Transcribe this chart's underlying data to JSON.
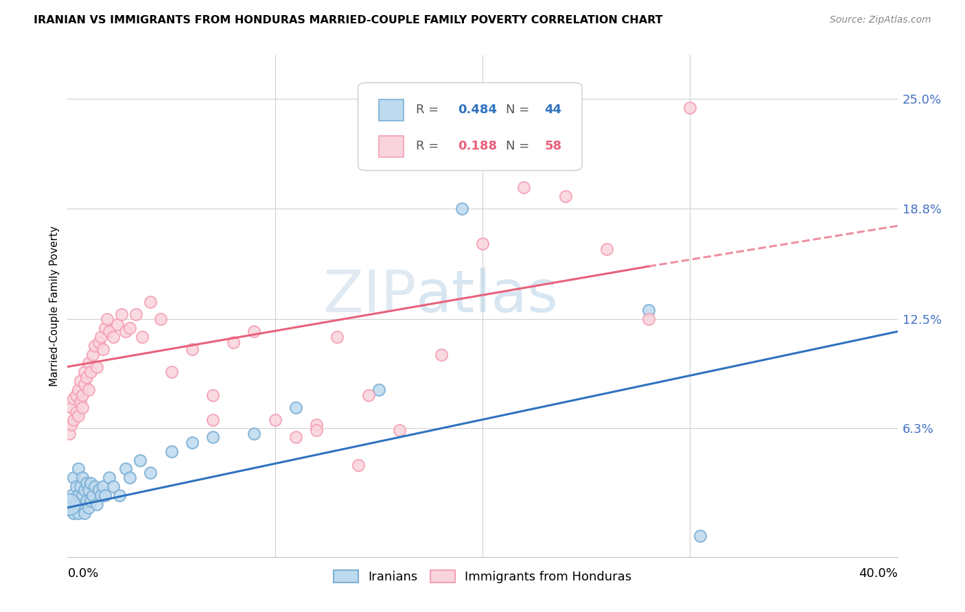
{
  "title": "IRANIAN VS IMMIGRANTS FROM HONDURAS MARRIED-COUPLE FAMILY POVERTY CORRELATION CHART",
  "source": "Source: ZipAtlas.com",
  "ylabel": "Married-Couple Family Poverty",
  "ytick_labels": [
    "25.0%",
    "18.8%",
    "12.5%",
    "6.3%"
  ],
  "ytick_values": [
    0.25,
    0.188,
    0.125,
    0.063
  ],
  "xlim": [
    0.0,
    0.4
  ],
  "ylim": [
    -0.01,
    0.275
  ],
  "watermark_zip": "ZIP",
  "watermark_atlas": "atlas",
  "legend_r1": "R =",
  "legend_v1": "0.484",
  "legend_n1_label": "N =",
  "legend_n1": "44",
  "legend_r2": "R =",
  "legend_v2": "0.188",
  "legend_n2_label": "N =",
  "legend_n2": "58",
  "blue_fill": "#BEDAEF",
  "blue_edge": "#7BAFD4",
  "pink_fill": "#FAD4DC",
  "pink_edge": "#F4A0B5",
  "line_blue": "#2F72BF",
  "line_pink": "#E8607A",
  "iranians_label": "Iranians",
  "honduras_label": "Immigrants from Honduras",
  "iranians_x": [
    0.001,
    0.002,
    0.003,
    0.003,
    0.004,
    0.004,
    0.005,
    0.005,
    0.005,
    0.006,
    0.006,
    0.007,
    0.007,
    0.008,
    0.008,
    0.009,
    0.009,
    0.01,
    0.01,
    0.011,
    0.011,
    0.012,
    0.013,
    0.014,
    0.015,
    0.016,
    0.017,
    0.018,
    0.02,
    0.022,
    0.025,
    0.028,
    0.03,
    0.035,
    0.04,
    0.05,
    0.06,
    0.07,
    0.09,
    0.11,
    0.15,
    0.19,
    0.28,
    0.305
  ],
  "iranians_y": [
    0.02,
    0.025,
    0.015,
    0.035,
    0.02,
    0.03,
    0.015,
    0.025,
    0.04,
    0.02,
    0.03,
    0.025,
    0.035,
    0.015,
    0.028,
    0.022,
    0.032,
    0.018,
    0.028,
    0.022,
    0.032,
    0.025,
    0.03,
    0.02,
    0.028,
    0.025,
    0.03,
    0.025,
    0.035,
    0.03,
    0.025,
    0.04,
    0.035,
    0.045,
    0.038,
    0.05,
    0.055,
    0.058,
    0.06,
    0.075,
    0.085,
    0.188,
    0.13,
    0.002
  ],
  "honduras_x": [
    0.001,
    0.002,
    0.002,
    0.003,
    0.003,
    0.004,
    0.004,
    0.005,
    0.005,
    0.006,
    0.006,
    0.007,
    0.007,
    0.008,
    0.008,
    0.009,
    0.01,
    0.01,
    0.011,
    0.012,
    0.013,
    0.014,
    0.015,
    0.016,
    0.017,
    0.018,
    0.019,
    0.02,
    0.022,
    0.024,
    0.026,
    0.028,
    0.03,
    0.033,
    0.036,
    0.04,
    0.045,
    0.05,
    0.06,
    0.07,
    0.08,
    0.09,
    0.1,
    0.11,
    0.12,
    0.14,
    0.16,
    0.18,
    0.2,
    0.22,
    0.24,
    0.26,
    0.28,
    0.3,
    0.13,
    0.145,
    0.07,
    0.12
  ],
  "honduras_y": [
    0.06,
    0.065,
    0.075,
    0.068,
    0.08,
    0.072,
    0.082,
    0.07,
    0.085,
    0.078,
    0.09,
    0.082,
    0.075,
    0.088,
    0.095,
    0.092,
    0.085,
    0.1,
    0.095,
    0.105,
    0.11,
    0.098,
    0.112,
    0.115,
    0.108,
    0.12,
    0.125,
    0.118,
    0.115,
    0.122,
    0.128,
    0.118,
    0.12,
    0.128,
    0.115,
    0.135,
    0.125,
    0.095,
    0.108,
    0.082,
    0.112,
    0.118,
    0.068,
    0.058,
    0.065,
    0.042,
    0.062,
    0.105,
    0.168,
    0.2,
    0.195,
    0.165,
    0.125,
    0.245,
    0.115,
    0.082,
    0.068,
    0.062
  ],
  "iranians_sizes": [
    300,
    150,
    150,
    150,
    150,
    150,
    150,
    150,
    150,
    150,
    150,
    150,
    150,
    150,
    150,
    150,
    150,
    150,
    150,
    150,
    150,
    150,
    150,
    150,
    150,
    150,
    150,
    150,
    150,
    150,
    150,
    150,
    150,
    150,
    150,
    150,
    150,
    150,
    150,
    150,
    150,
    150,
    150,
    150
  ],
  "line_blue_start_x": 0.0,
  "line_blue_start_y": 0.018,
  "line_blue_end_x": 0.4,
  "line_blue_end_y": 0.118,
  "line_pink_solid_start_x": 0.0,
  "line_pink_solid_start_y": 0.098,
  "line_pink_solid_end_x": 0.28,
  "line_pink_solid_end_y": 0.155,
  "line_pink_dash_start_x": 0.28,
  "line_pink_dash_start_y": 0.155,
  "line_pink_dash_end_x": 0.4,
  "line_pink_dash_end_y": 0.178
}
